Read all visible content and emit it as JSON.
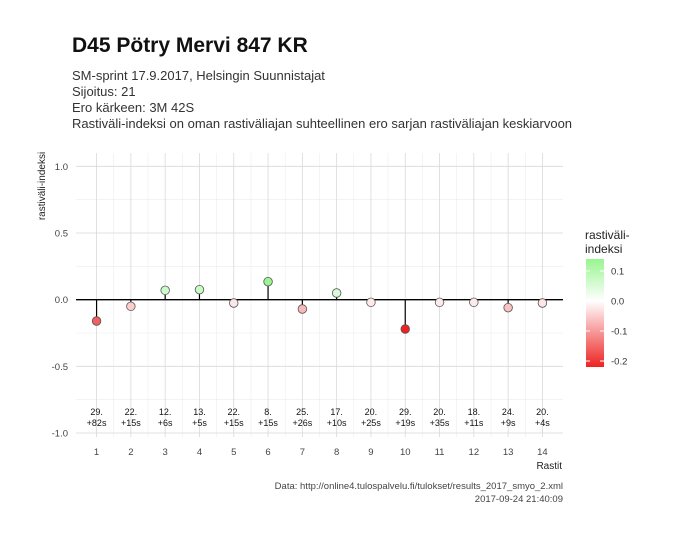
{
  "header": {
    "title": "D45 Pötry Mervi 847 KR",
    "subtitle1": "SM-sprint 17.9.2017, Helsingin Suunnistajat",
    "subtitle2": "Sijoitus: 21",
    "subtitle3": "Ero kärkeen: 3M 42S",
    "subtitle4": "Rastiväli-indeksi on oman rastiväliajan suhteellinen ero sarjan rastiväliajan keskiarvoon"
  },
  "caption": {
    "line1": "Data: http://online4.tulospalvelu.fi/tulokset/results_2017_smyo_2.xml",
    "line2": "2017-09-24 21:40:09"
  },
  "chart_data": {
    "type": "scatter",
    "xlabel": "Rastit",
    "ylabel": "rastiväli-indeksi",
    "x": [
      1,
      2,
      3,
      4,
      5,
      6,
      7,
      8,
      9,
      10,
      11,
      12,
      13,
      14
    ],
    "values": [
      -0.16,
      -0.05,
      0.07,
      0.075,
      -0.025,
      0.135,
      -0.07,
      0.05,
      -0.02,
      -0.22,
      -0.02,
      -0.02,
      -0.06,
      -0.025
    ],
    "point_labels": [
      [
        "29.",
        "+82s"
      ],
      [
        "22.",
        "+15s"
      ],
      [
        "12.",
        "+6s"
      ],
      [
        "13.",
        "+5s"
      ],
      [
        "22.",
        "+15s"
      ],
      [
        "8.",
        "+15s"
      ],
      [
        "25.",
        "+26s"
      ],
      [
        "17.",
        "+10s"
      ],
      [
        "20.",
        "+25s"
      ],
      [
        "29.",
        "+19s"
      ],
      [
        "20.",
        "+35s"
      ],
      [
        "18.",
        "+11s"
      ],
      [
        "24.",
        "+9s"
      ],
      [
        "20.",
        "+4s"
      ]
    ],
    "xlim": [
      0.4,
      14.6
    ],
    "ylim": [
      -1.03,
      1.1
    ],
    "yticks": [
      -1.0,
      -0.5,
      0.0,
      0.5,
      1.0
    ],
    "ytick_labels": [
      "-1.0",
      "-0.5",
      "0.0",
      "0.5",
      "1.0"
    ],
    "grid": true,
    "legend": {
      "title_line1": "rastiväli-",
      "title_line2": "indeksi",
      "placement": "right",
      "ticks": [
        0.1,
        0.0,
        -0.1,
        -0.2
      ],
      "tick_labels": [
        "0.1",
        "0.0",
        "-0.1",
        "-0.2"
      ],
      "range": [
        -0.22,
        0.14
      ],
      "colors": {
        "high": "#98f590",
        "mid": "#ffffff",
        "low": "#ee2222"
      }
    }
  }
}
